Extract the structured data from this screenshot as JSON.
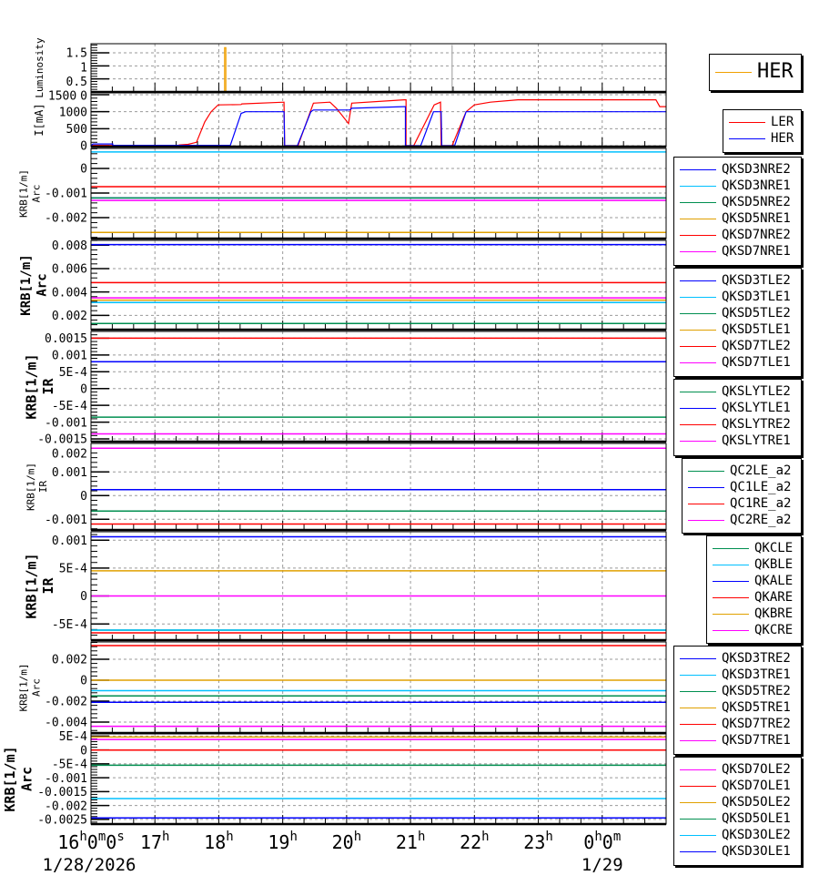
{
  "colors": {
    "blue": "#0000ff",
    "cyan": "#00c0ff",
    "green": "#008f50",
    "orange": "#e0a000",
    "red": "#ff0000",
    "magenta": "#ff00ff",
    "gray": "#aaaaaa"
  },
  "x_axis": {
    "range_hours": [
      16,
      25
    ],
    "ticks": [
      {
        "hour": 16,
        "label": "16h0m0s"
      },
      {
        "hour": 17,
        "label": "17h"
      },
      {
        "hour": 18,
        "label": "18h"
      },
      {
        "hour": 19,
        "label": "19h"
      },
      {
        "hour": 20,
        "label": "20h"
      },
      {
        "hour": 21,
        "label": "21h"
      },
      {
        "hour": 22,
        "label": "22h"
      },
      {
        "hour": 23,
        "label": "23h"
      },
      {
        "hour": 24,
        "label": "0h0m"
      }
    ],
    "dates": [
      {
        "hour": 16,
        "label": "1/28/2026"
      },
      {
        "hour": 24,
        "label": "1/29"
      }
    ]
  },
  "chart_data": [
    {
      "type": "line",
      "ylabel": [
        "Luminosity"
      ],
      "ylim": [
        0,
        1.85
      ],
      "yticks": [
        {
          "v": 0,
          "label": "0"
        },
        {
          "v": 0.5,
          "label": "0.5"
        },
        {
          "v": 1,
          "label": "1"
        },
        {
          "v": 1.5,
          "label": "1.5"
        }
      ],
      "series": [
        {
          "name": "HER",
          "color": "#f0a000",
          "points": [
            [
              16,
              0
            ],
            [
              18.09,
              0
            ],
            [
              18.09,
              1.7
            ],
            [
              18.11,
              1.7
            ],
            [
              18.11,
              0
            ],
            [
              25,
              0
            ]
          ]
        },
        {
          "color": "#aaaaaa",
          "points": [
            [
              21.65,
              0
            ],
            [
              21.65,
              1.8
            ]
          ]
        }
      ],
      "legend": [
        "HER"
      ]
    },
    {
      "type": "line",
      "ylabel": [
        "I[mA]"
      ],
      "ylim": [
        -27,
        1554
      ],
      "yticks": [
        {
          "v": 0,
          "label": "0"
        },
        {
          "v": 500,
          "label": "500"
        },
        {
          "v": 1000,
          "label": "1000"
        },
        {
          "v": 1500,
          "label": "1500"
        }
      ],
      "series": [
        {
          "name": "LER",
          "color": "#ff0000",
          "points": [
            [
              16,
              8
            ],
            [
              17.38,
              10
            ],
            [
              17.38,
              20
            ],
            [
              17.52,
              40
            ],
            [
              17.65,
              100
            ],
            [
              17.78,
              700
            ],
            [
              17.88,
              1000
            ],
            [
              17.99,
              1200
            ],
            [
              18.35,
              1210
            ],
            [
              18.36,
              1230
            ],
            [
              19.02,
              1280
            ],
            [
              19.03,
              0
            ],
            [
              19.24,
              0
            ],
            [
              19.48,
              1250
            ],
            [
              19.74,
              1280
            ],
            [
              19.84,
              1100
            ],
            [
              20.03,
              650
            ],
            [
              20.08,
              1250
            ],
            [
              20.9,
              1350
            ],
            [
              20.93,
              1350
            ],
            [
              20.93,
              0
            ],
            [
              21.05,
              0
            ],
            [
              21.37,
              1200
            ],
            [
              21.47,
              1280
            ],
            [
              21.48,
              0
            ],
            [
              21.65,
              0
            ],
            [
              21.87,
              1000
            ],
            [
              22.0,
              1200
            ],
            [
              22.25,
              1280
            ],
            [
              22.68,
              1350
            ],
            [
              24.84,
              1350
            ],
            [
              24.9,
              1150
            ],
            [
              25,
              1150
            ]
          ]
        },
        {
          "name": "HER",
          "color": "#0000ff",
          "points": [
            [
              16,
              0
            ],
            [
              16.03,
              50
            ],
            [
              16.34,
              50
            ],
            [
              16.34,
              10
            ],
            [
              18.18,
              10
            ],
            [
              18.35,
              950
            ],
            [
              18.42,
              1000
            ],
            [
              19.02,
              1000
            ],
            [
              19.03,
              0
            ],
            [
              19.23,
              0
            ],
            [
              19.44,
              1000
            ],
            [
              19.48,
              1050
            ],
            [
              20.05,
              1050
            ],
            [
              20.08,
              1100
            ],
            [
              20.9,
              1150
            ],
            [
              20.92,
              1150
            ],
            [
              20.92,
              0
            ],
            [
              21.16,
              0
            ],
            [
              21.36,
              1000
            ],
            [
              21.48,
              1000
            ],
            [
              21.49,
              0
            ],
            [
              21.69,
              0
            ],
            [
              21.87,
              1000
            ],
            [
              25,
              1000
            ]
          ]
        }
      ],
      "legend": [
        "LER",
        "HER"
      ]
    },
    {
      "type": "line",
      "ylabel": [
        "KRB[1/m]",
        "Arc"
      ],
      "ylim": [
        -0.00285,
        0.000815
      ],
      "yticks": [
        {
          "v": 0,
          "label": "0"
        },
        {
          "v": -0.001,
          "label": "-0.001"
        },
        {
          "v": -0.002,
          "label": "-0.002"
        }
      ],
      "series": [
        {
          "name": "QKSD3NRE2",
          "color": "#0000ff",
          "value": -0.0012
        },
        {
          "name": "QKSD3NRE1",
          "color": "#00c0ff",
          "value": 0.00067
        },
        {
          "name": "QKSD5NRE2",
          "color": "#008f50",
          "value": -0.0012
        },
        {
          "name": "QKSD5NRE1",
          "color": "#e0a000",
          "value": -0.0026
        },
        {
          "name": "QKSD7NRE2",
          "color": "#ff0000",
          "value": -0.00074
        },
        {
          "name": "QKSD7NRE1",
          "color": "#ff00ff",
          "value": -0.0013
        }
      ]
    },
    {
      "type": "line",
      "ylabel": [
        "KRB[1/m]",
        "Arc"
      ],
      "ylim": [
        0.00078,
        0.00841
      ],
      "yticks": [
        {
          "v": 0.002,
          "label": "0.002"
        },
        {
          "v": 0.004,
          "label": "0.004"
        },
        {
          "v": 0.006,
          "label": "0.006"
        },
        {
          "v": 0.008,
          "label": "0.008"
        }
      ],
      "series": [
        {
          "name": "QKSD3TLE2",
          "color": "#0000ff",
          "value": 0.00805
        },
        {
          "name": "QKSD3TLE1",
          "color": "#00c0ff",
          "value": 0.0031
        },
        {
          "name": "QKSD5TLE2",
          "color": "#008f50",
          "value": 0.0013
        },
        {
          "name": "QKSD5TLE1",
          "color": "#e0a000",
          "value": 0.0033
        },
        {
          "name": "QKSD7TLE2",
          "color": "#ff0000",
          "value": 0.0048
        },
        {
          "name": "QKSD7TLE1",
          "color": "#ff00ff",
          "value": 0.0035
        }
      ]
    },
    {
      "type": "line",
      "ylabel": [
        "KRB[1/m]",
        "IR"
      ],
      "ylim": [
        -0.00158,
        0.0017
      ],
      "yticks": [
        {
          "v": 0.0015,
          "label": "0.0015"
        },
        {
          "v": 0.001,
          "label": "0.001"
        },
        {
          "v": 0.0005,
          "label": "5E-4"
        },
        {
          "v": 0,
          "label": "0"
        },
        {
          "v": -0.0005,
          "label": "-5E-4"
        },
        {
          "v": -0.001,
          "label": "-0.001"
        },
        {
          "v": -0.0015,
          "label": "-0.0015"
        }
      ],
      "series": [
        {
          "name": "QKSLYTLE2",
          "color": "#008f50",
          "value": -0.00085
        },
        {
          "name": "QKSLYTLE1",
          "color": "#0000ff",
          "value": 0.0008
        },
        {
          "name": "QKSLYTRE2",
          "color": "#ff0000",
          "value": 0.0015
        },
        {
          "name": "QKSLYTRE1",
          "color": "#ff00ff",
          "value": -0.00135
        }
      ]
    },
    {
      "type": "line",
      "ylabel": [
        "KRB[1/m]",
        "IR"
      ],
      "ylim": [
        -0.00145,
        0.0022
      ],
      "yticks": [
        {
          "v": 0.002,
          "label": "0.002"
        },
        {
          "v": 0.001,
          "label": "0.001"
        },
        {
          "v": 0,
          "label": "0"
        },
        {
          "v": -0.001,
          "label": "-0.001"
        }
      ],
      "series": [
        {
          "name": "QC2LE_a2",
          "color": "#008f50",
          "value": -0.00065
        },
        {
          "name": "QC1LE_a2",
          "color": "#0000ff",
          "value": 0.00025
        },
        {
          "name": "QC1RE_a2",
          "color": "#ff0000",
          "value": -0.0012
        },
        {
          "name": "QC2RE_a2",
          "color": "#ff00ff",
          "value": 0.002
        }
      ]
    },
    {
      "type": "line",
      "ylabel": [
        "KRB[1/m]",
        "IR"
      ],
      "ylim": [
        -0.00079,
        0.00115
      ],
      "yticks": [
        {
          "v": 0.001,
          "label": "0.001"
        },
        {
          "v": 0.0005,
          "label": "5E-4"
        },
        {
          "v": 0,
          "label": "0"
        },
        {
          "v": -0.0005,
          "label": "-5E-4"
        }
      ],
      "series": [
        {
          "name": "QKCLE",
          "color": "#008f50",
          "value": -0.00061
        },
        {
          "name": "QKBLE",
          "color": "#00c0ff",
          "value": -0.00061
        },
        {
          "name": "QKALE",
          "color": "#0000ff",
          "value": 0.00106
        },
        {
          "name": "QKARE",
          "color": "#ff0000",
          "value": -0.00066
        },
        {
          "name": "QKBRE",
          "color": "#e0a000",
          "value": 0.00045
        },
        {
          "name": "QKCRE",
          "color": "#ff00ff",
          "value": 0
        }
      ]
    },
    {
      "type": "line",
      "ylabel": [
        "KRB[1/m]",
        "Arc"
      ],
      "ylim": [
        -0.00504,
        0.00365
      ],
      "yticks": [
        {
          "v": 0.002,
          "label": "0.002"
        },
        {
          "v": 0,
          "label": "0"
        },
        {
          "v": -0.002,
          "label": "-0.002"
        },
        {
          "v": -0.004,
          "label": "-0.004"
        }
      ],
      "series": [
        {
          "name": "QKSD3TRE2",
          "color": "#0000ff",
          "value": -0.0021
        },
        {
          "name": "QKSD3TRE1",
          "color": "#00c0ff",
          "value": -0.001
        },
        {
          "name": "QKSD5TRE2",
          "color": "#008f50",
          "value": -0.0015
        },
        {
          "name": "QKSD5TRE1",
          "color": "#e0a000",
          "value": 0
        },
        {
          "name": "QKSD7TRE2",
          "color": "#ff0000",
          "value": 0.0033
        },
        {
          "name": "QKSD7TRE1",
          "color": "#ff00ff",
          "value": -0.0044
        }
      ]
    },
    {
      "type": "line",
      "ylabel": [
        "KRB[1/m]",
        "Arc"
      ],
      "ylim": [
        -0.00267,
        0.00058
      ],
      "yticks": [
        {
          "v": 0.0005,
          "label": "5E-4"
        },
        {
          "v": 0,
          "label": "0"
        },
        {
          "v": -0.0005,
          "label": "-5E-4"
        },
        {
          "v": -0.001,
          "label": "-0.001"
        },
        {
          "v": -0.0015,
          "label": "-0.0015"
        },
        {
          "v": -0.002,
          "label": "-0.002"
        },
        {
          "v": -0.0025,
          "label": "-0.0025"
        }
      ],
      "series": [
        {
          "name": "QKSD7OLE2",
          "color": "#ff00ff",
          "value": 0.00038
        },
        {
          "name": "QKSD7OLE1",
          "color": "#ff0000",
          "value": 0
        },
        {
          "name": "QKSD5OLE2",
          "color": "#e0a000",
          "value": 0.00047
        },
        {
          "name": "QKSD5OLE1",
          "color": "#008f50",
          "value": -0.00055
        },
        {
          "name": "QKSD3OLE2",
          "color": "#00c0ff",
          "value": -0.00175
        },
        {
          "name": "QKSD3OLE1",
          "color": "#0000ff",
          "value": -0.00245
        }
      ]
    }
  ]
}
